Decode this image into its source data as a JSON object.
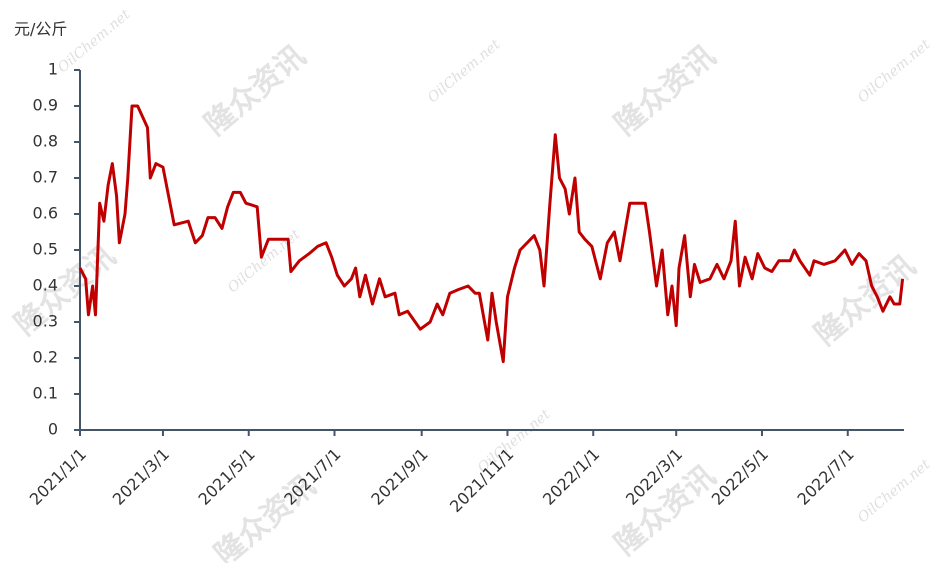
{
  "chart_data": {
    "type": "line",
    "y_label": "元/公斤",
    "watermark": [
      "隆众资讯",
      "OilChem.net"
    ],
    "color": "#c00000",
    "x": [
      "2021/1/1",
      "2021/1/5",
      "2021/1/7",
      "2021/1/10",
      "2021/1/12",
      "2021/1/15",
      "2021/1/18",
      "2021/1/21",
      "2021/1/24",
      "2021/1/27",
      "2021/1/29",
      "2021/2/2",
      "2021/2/4",
      "2021/2/7",
      "2021/2/11",
      "2021/2/18",
      "2021/2/20",
      "2021/2/24",
      "2021/3/1",
      "2021/3/5",
      "2021/3/9",
      "2021/3/19",
      "2021/3/24",
      "2021/3/29",
      "2021/4/2",
      "2021/4/7",
      "2021/4/12",
      "2021/4/16",
      "2021/4/20",
      "2021/4/25",
      "2021/4/29",
      "2021/5/7",
      "2021/5/10",
      "2021/5/15",
      "2021/5/22",
      "2021/5/29",
      "2021/5/31",
      "2021/6/6",
      "2021/6/13",
      "2021/6/19",
      "2021/6/25",
      "2021/6/29",
      "2021/7/3",
      "2021/7/8",
      "2021/7/13",
      "2021/7/16",
      "2021/7/19",
      "2021/7/23",
      "2021/7/28",
      "2021/8/2",
      "2021/8/6",
      "2021/8/13",
      "2021/8/16",
      "2021/8/22",
      "2021/8/31",
      "2021/9/7",
      "2021/9/12",
      "2021/9/16",
      "2021/9/21",
      "2021/9/27",
      "2021/10/4",
      "2021/10/9",
      "2021/10/12",
      "2021/10/18",
      "2021/10/21",
      "2021/10/24",
      "2021/10/29",
      "2021/11/1",
      "2021/11/6",
      "2021/11/10",
      "2021/11/15",
      "2021/11/20",
      "2021/11/24",
      "2021/11/27",
      "2021/12/1",
      "2021/12/5",
      "2021/12/8",
      "2021/12/12",
      "2021/12/15",
      "2021/12/19",
      "2021/12/22",
      "2021/12/26",
      "2021/12/31",
      "2022/1/6",
      "2022/1/11",
      "2022/1/16",
      "2022/1/20",
      "2022/1/27",
      "2022/2/7",
      "2022/2/10",
      "2022/2/15",
      "2022/2/19",
      "2022/2/23",
      "2022/2/26",
      "2022/3/1",
      "2022/3/3",
      "2022/3/7",
      "2022/3/11",
      "2022/3/14",
      "2022/3/18",
      "2022/3/25",
      "2022/3/30",
      "2022/4/4",
      "2022/4/9",
      "2022/4/12",
      "2022/4/15",
      "2022/4/19",
      "2022/4/24",
      "2022/4/28",
      "2022/5/3",
      "2022/5/8",
      "2022/5/13",
      "2022/5/21",
      "2022/5/24",
      "2022/5/28",
      "2022/6/4",
      "2022/6/7",
      "2022/6/14",
      "2022/6/22",
      "2022/6/29",
      "2022/7/4",
      "2022/7/9",
      "2022/7/14",
      "2022/7/18",
      "2022/7/22",
      "2022/7/26",
      "2022/7/31",
      "2022/8/3",
      "2022/8/7",
      "2022/8/9"
    ],
    "values": [
      0.45,
      0.42,
      0.32,
      0.4,
      0.32,
      0.63,
      0.58,
      0.68,
      0.74,
      0.65,
      0.52,
      0.6,
      0.7,
      0.9,
      0.9,
      0.84,
      0.7,
      0.74,
      0.73,
      0.65,
      0.57,
      0.58,
      0.52,
      0.54,
      0.59,
      0.59,
      0.56,
      0.62,
      0.66,
      0.66,
      0.63,
      0.62,
      0.48,
      0.53,
      0.53,
      0.53,
      0.44,
      0.47,
      0.49,
      0.51,
      0.52,
      0.48,
      0.43,
      0.4,
      0.42,
      0.45,
      0.37,
      0.43,
      0.35,
      0.42,
      0.37,
      0.38,
      0.32,
      0.33,
      0.28,
      0.3,
      0.35,
      0.32,
      0.38,
      0.39,
      0.4,
      0.38,
      0.38,
      0.25,
      0.38,
      0.3,
      0.19,
      0.37,
      0.45,
      0.5,
      0.52,
      0.54,
      0.5,
      0.4,
      0.62,
      0.82,
      0.7,
      0.67,
      0.6,
      0.7,
      0.55,
      0.53,
      0.51,
      0.42,
      0.52,
      0.55,
      0.47,
      0.63,
      0.63,
      0.55,
      0.4,
      0.5,
      0.32,
      0.4,
      0.29,
      0.45,
      0.54,
      0.37,
      0.46,
      0.41,
      0.42,
      0.46,
      0.42,
      0.47,
      0.58,
      0.4,
      0.48,
      0.42,
      0.49,
      0.45,
      0.44,
      0.47,
      0.47,
      0.5,
      0.47,
      0.43,
      0.47,
      0.46,
      0.47,
      0.5,
      0.46,
      0.49,
      0.47,
      0.4,
      0.37,
      0.33,
      0.37,
      0.35,
      0.35,
      0.42
    ],
    "xlim": [
      "2021/1/1",
      "2022/8/10"
    ],
    "xticks": [
      "2021/1/1",
      "2021/3/1",
      "2021/5/1",
      "2021/7/1",
      "2021/9/1",
      "2021/11/1",
      "2022/1/1",
      "2022/3/1",
      "2022/5/1",
      "2022/7/1"
    ],
    "ylim": [
      0,
      1
    ],
    "yticks": [
      0,
      0.1,
      0.2,
      0.3,
      0.4,
      0.5,
      0.6,
      0.7,
      0.8,
      0.9,
      1
    ]
  }
}
